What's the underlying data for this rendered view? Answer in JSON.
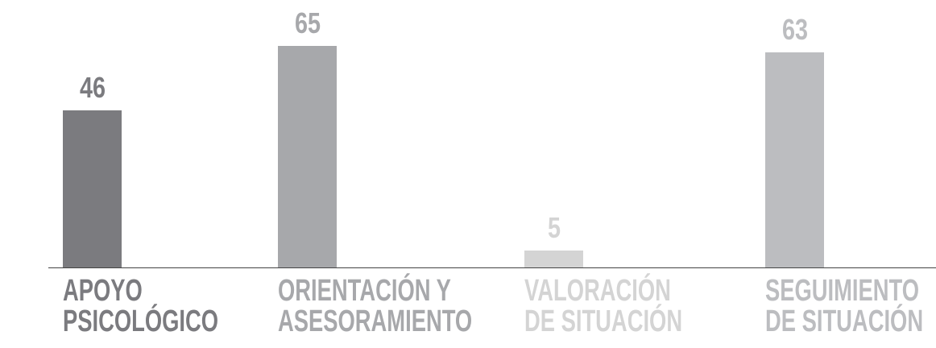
{
  "chart_data": {
    "type": "bar",
    "categories": [
      "APOYO\nPSICOLÓGICO",
      "ORIENTACIÓN Y\nASESORAMIENTO",
      "VALORACIÓN\nDE SITUACIÓN",
      "SEGUIMIENTO\nDE SITUACIÓN"
    ],
    "values": [
      46,
      65,
      5,
      63
    ],
    "colors": [
      "#7b7b7f",
      "#a7a8ab",
      "#d4d4d4",
      "#bcbdc0"
    ]
  }
}
